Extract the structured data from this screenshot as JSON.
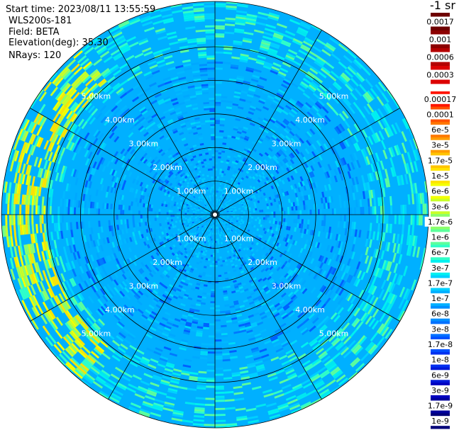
{
  "header": {
    "start_time": "Start time: 2023/08/11 13:55:59",
    "instrument": "WLS200s-181",
    "field": "Field: BETA",
    "elevation": "Elevation(deg): 35.30",
    "nrays": "NRays: 120"
  },
  "chart_data": {
    "type": "heatmap",
    "projection": "polar-ppi",
    "range_rings_km": [
      1,
      2,
      3,
      4,
      5
    ],
    "ring_label": "km",
    "ring_label_text": [
      "1.00km",
      "2.00km",
      "3.00km",
      "4.00km",
      "5.00km"
    ],
    "max_range_km": 6.35,
    "spoke_step_deg": 30,
    "colorbar": {
      "title": "-1 sr",
      "ticks": [
        "0.0017",
        "0.001",
        "0.0006",
        "0.0003",
        "0.00017",
        "0.0001",
        "6e-5",
        "3e-5",
        "1.7e-5",
        "1e-5",
        "6e-6",
        "3e-6",
        "1.7e-6",
        "1e-6",
        "6e-7",
        "3e-7",
        "1.7e-7",
        "1e-7",
        "6e-8",
        "3e-8",
        "1.7e-8",
        "1e-8",
        "6e-9",
        "3e-9",
        "1.7e-9",
        "1e-9"
      ],
      "colors": [
        "#6e0000",
        "#8c0000",
        "#b40000",
        "#dc0000",
        "#ff1400",
        "#ff5000",
        "#ff7800",
        "#ff9c00",
        "#ffc400",
        "#ffe400",
        "#f4ff00",
        "#c8ff28",
        "#8cff6c",
        "#5cff9c",
        "#30ffc8",
        "#00f0f0",
        "#00d0ff",
        "#00b0ff",
        "#0090ff",
        "#0070ff",
        "#0050ff",
        "#0030f0",
        "#0018d8",
        "#0000c0",
        "#00009c",
        "#000078"
      ],
      "scale": "log"
    },
    "field_description": {
      "background_level": "1e-7",
      "inner_level": "1e-7",
      "enhanced_band_level": "1e-5",
      "enhanced_band_range_km": [
        5.0,
        6.3
      ],
      "enhanced_band_azimuth_deg": [
        220,
        320
      ]
    }
  }
}
